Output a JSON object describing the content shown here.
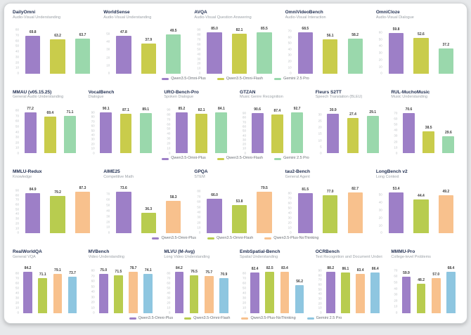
{
  "page": {
    "background": "#e7e9eb",
    "card_background": "#ffffff"
  },
  "palette": {
    "purple": "#9d7fc7",
    "yellow_green": "#c9cc4b",
    "light_green": "#9ad8ac",
    "orange": "#f8c18d",
    "light_blue": "#8ec6e0"
  },
  "chart_data": {
    "type": "bar",
    "rows": [
      {
        "legend": [
          {
            "name": "Qwen3.5-Omni-Plus",
            "color": "#9d7fc7"
          },
          {
            "name": "Qwen3.5-Omni-Flash",
            "color": "#c9cc4b"
          },
          {
            "name": "Gemini 2.5 Pro",
            "color": "#9ad8ac"
          }
        ],
        "charts": [
          {
            "title": "DailyOmni",
            "subtitle": "Audio-Visual Understanding",
            "values": [
              69.8,
              63.2,
              63.7
            ],
            "ymax": 80,
            "ticks": [
              80,
              70,
              60,
              50,
              40,
              30,
              20,
              10,
              0
            ]
          },
          {
            "title": "WorldSense",
            "subtitle": "Audio-Visual Understanding",
            "values": [
              47.8,
              37.9,
              49.5
            ],
            "ymax": 55,
            "ticks": [
              50,
              40,
              30,
              20,
              10,
              0
            ]
          },
          {
            "title": "AVQA",
            "subtitle": "Audio-Visual Question Answering",
            "values": [
              85.0,
              82.1,
              85.5
            ],
            "ymax": 90,
            "ticks": [
              90,
              80,
              70,
              60,
              50,
              40,
              30,
              20,
              10,
              0
            ]
          },
          {
            "title": "OmniVideoBench",
            "subtitle": "Audio-Visual Interaction",
            "values": [
              68.5,
              56.1,
              58.2
            ],
            "ymax": 72,
            "ticks": [
              70,
              60,
              50,
              40,
              30,
              20,
              10,
              0
            ]
          },
          {
            "title": "OmniCloze",
            "subtitle": "Audio-Visual Dialogue",
            "values": [
              59.8,
              52.6,
              37.2
            ],
            "ymax": 64,
            "ticks": [
              60,
              50,
              40,
              30,
              20,
              10,
              0
            ]
          }
        ]
      },
      {
        "legend": [
          {
            "name": "Qwen3.5-Omni-Plus",
            "color": "#9d7fc7"
          },
          {
            "name": "Qwen3.5-Omni-Flash",
            "color": "#c9cc4b"
          },
          {
            "name": "Gemini 2.5 Pro",
            "color": "#9ad8ac"
          }
        ],
        "charts": [
          {
            "title": "MMAU (v05.15.25)",
            "subtitle": "General Audio Understanding",
            "values": [
              77.2,
              69.4,
              71.1
            ],
            "ymax": 82,
            "ticks": [
              80,
              70,
              60,
              50,
              40,
              30,
              20,
              10,
              0
            ]
          },
          {
            "title": "VocalBench",
            "subtitle": "Dialogue",
            "values": [
              90.1,
              87.1,
              89.1
            ],
            "ymax": 96,
            "ticks": [
              90,
              80,
              70,
              60,
              50,
              40,
              30,
              20,
              10,
              0
            ]
          },
          {
            "title": "URO-Bench-Pro",
            "subtitle": "Spoken Dialogue",
            "values": [
              85.2,
              82.1,
              84.1
            ],
            "ymax": 90,
            "ticks": [
              90,
              80,
              70,
              60,
              50,
              40,
              30,
              20,
              10,
              0
            ]
          },
          {
            "title": "GTZAN",
            "subtitle": "Music Genre Recognition",
            "values": [
              90.6,
              87.4,
              92.7
            ],
            "ymax": 98,
            "ticks": [
              90,
              80,
              70,
              60,
              50,
              40,
              30,
              20,
              10,
              0
            ]
          },
          {
            "title": "Fleurs S2TT",
            "subtitle": "Speech Translation (BLEU)",
            "values": [
              30.9,
              27.4,
              29.1
            ],
            "ymax": 34,
            "ticks": [
              30,
              25,
              20,
              15,
              10,
              5,
              0
            ]
          },
          {
            "title": "RUL-MuchoMusic",
            "subtitle": "Music Understanding",
            "values": [
              70.6,
              38.5,
              29.6
            ],
            "ymax": 76,
            "ticks": [
              70,
              60,
              50,
              40,
              30,
              20,
              10,
              0
            ]
          }
        ]
      },
      {
        "legend": [
          {
            "name": "Qwen3.5-Omni-Plus",
            "color": "#9d7fc7"
          },
          {
            "name": "Qwen3.5-Omni-Flash",
            "color": "#b8cc4f"
          },
          {
            "name": "Qwen3.5-Plus-NoThinking",
            "color": "#f8c18d"
          }
        ],
        "charts": [
          {
            "title": "MMLU-Redux",
            "subtitle": "Knowledge",
            "values": [
              84.9,
              79.2,
              87.3
            ],
            "ymax": 92,
            "ticks": [
              90,
              80,
              70,
              60,
              50,
              40,
              30,
              20,
              10,
              0
            ]
          },
          {
            "title": "AIME25",
            "subtitle": "Competitive Math",
            "values": [
              73.6,
              36.3,
              58.3
            ],
            "ymax": 78,
            "ticks": [
              70,
              60,
              50,
              40,
              30,
              20,
              10,
              0
            ]
          },
          {
            "title": "GPQA",
            "subtitle": "STEM",
            "values": [
              66.0,
              53.8,
              79.5
            ],
            "ymax": 84,
            "ticks": [
              80,
              70,
              60,
              50,
              40,
              30,
              20,
              10,
              0
            ]
          },
          {
            "title": "tau2-Bench",
            "subtitle": "General Agent",
            "values": [
              81.5,
              77.0,
              82.7
            ],
            "ymax": 88,
            "ticks": [
              80,
              70,
              60,
              50,
              40,
              30,
              20,
              10,
              0
            ]
          },
          {
            "title": "LongBench v2",
            "subtitle": "Long Context",
            "values": [
              53.4,
              44.4,
              49.2
            ],
            "ymax": 57,
            "ticks": [
              50,
              40,
              30,
              20,
              10,
              0
            ]
          }
        ]
      },
      {
        "legend": [
          {
            "name": "Qwen3.5-Omni-Plus",
            "color": "#9d7fc7"
          },
          {
            "name": "Qwen3.5-Omni-Flash",
            "color": "#b8cc4f"
          },
          {
            "name": "Qwen3.5-Plus-NoThinking",
            "color": "#f8c18d"
          },
          {
            "name": "Gemini 2.5 Pro",
            "color": "#8ec6e0"
          }
        ],
        "charts": [
          {
            "title": "RealWorldQA",
            "subtitle": "General VQA",
            "values": [
              84.2,
              71.1,
              79.1,
              73.7
            ],
            "ymax": 89,
            "ticks": [
              80,
              70,
              60,
              50,
              40,
              30,
              20,
              10,
              0
            ]
          },
          {
            "title": "MVBench",
            "subtitle": "Video Understanding",
            "values": [
              75.0,
              71.5,
              78.7,
              74.1
            ],
            "ymax": 83,
            "ticks": [
              80,
              70,
              60,
              50,
              40,
              30,
              20,
              10,
              0
            ]
          },
          {
            "title": "MLVU (M-Avg)",
            "subtitle": "Long Video Understanding",
            "values": [
              84.2,
              76.5,
              75.7,
              70.9
            ],
            "ymax": 89,
            "ticks": [
              80,
              70,
              60,
              50,
              40,
              30,
              20,
              10,
              0
            ]
          },
          {
            "title": "EmbSpatial-Bench",
            "subtitle": "Spatial Understanding",
            "values": [
              82.4,
              82.5,
              83.4,
              56.2
            ],
            "ymax": 88,
            "ticks": [
              80,
              70,
              60,
              50,
              40,
              30,
              20,
              10,
              0
            ]
          },
          {
            "title": "OCRBench",
            "subtitle": "Text Recognition and Document Understanding",
            "values": [
              88.2,
              86.1,
              83.4,
              86.4
            ],
            "ymax": 93,
            "ticks": [
              90,
              80,
              70,
              60,
              50,
              40,
              30,
              20,
              10,
              0
            ]
          },
          {
            "title": "MMMU-Pro",
            "subtitle": "College-level Problems",
            "values": [
              59.9,
              48.2,
              57.0,
              68.4
            ],
            "ymax": 72,
            "ticks": [
              70,
              60,
              50,
              40,
              30,
              20,
              10,
              0
            ]
          }
        ]
      }
    ]
  }
}
